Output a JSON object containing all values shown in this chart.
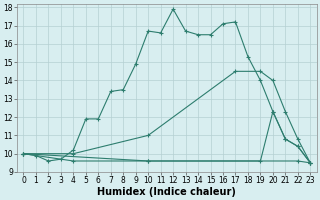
{
  "line1_x": [
    0,
    1,
    2,
    3,
    4,
    5,
    6,
    7,
    8,
    9,
    10,
    11,
    12,
    13,
    14,
    15,
    16,
    17,
    18,
    19,
    20,
    21,
    22,
    23
  ],
  "line1_y": [
    10,
    9.9,
    9.6,
    9.7,
    10.2,
    11.9,
    11.9,
    13.4,
    13.5,
    14.9,
    16.7,
    16.6,
    17.9,
    16.7,
    16.5,
    16.5,
    17.1,
    17.2,
    15.3,
    14.0,
    12.3,
    10.8,
    10.4,
    9.5
  ],
  "line2_x": [
    0,
    4,
    10,
    17,
    19,
    20,
    21,
    22,
    23
  ],
  "line2_y": [
    10,
    10.0,
    11.0,
    14.5,
    14.5,
    14.0,
    12.3,
    10.8,
    9.5
  ],
  "line3_x": [
    0,
    4,
    10,
    19,
    20,
    21,
    22,
    23
  ],
  "line3_y": [
    10,
    9.6,
    9.6,
    9.6,
    12.3,
    10.8,
    10.4,
    9.5
  ],
  "line4_x": [
    0,
    10,
    22,
    23
  ],
  "line4_y": [
    10,
    9.6,
    9.6,
    9.5
  ],
  "line_color": "#2d7d6e",
  "bg_color": "#d8eef0",
  "grid_color": "#b5d0d3",
  "xlabel": "Humidex (Indice chaleur)",
  "xlim": [
    -0.5,
    23.5
  ],
  "ylim": [
    9,
    18.2
  ],
  "yticks": [
    9,
    10,
    11,
    12,
    13,
    14,
    15,
    16,
    17,
    18
  ],
  "xticks": [
    0,
    1,
    2,
    3,
    4,
    5,
    6,
    7,
    8,
    9,
    10,
    11,
    12,
    13,
    14,
    15,
    16,
    17,
    18,
    19,
    20,
    21,
    22,
    23
  ],
  "tick_fontsize": 5.5,
  "label_fontsize": 7.0
}
